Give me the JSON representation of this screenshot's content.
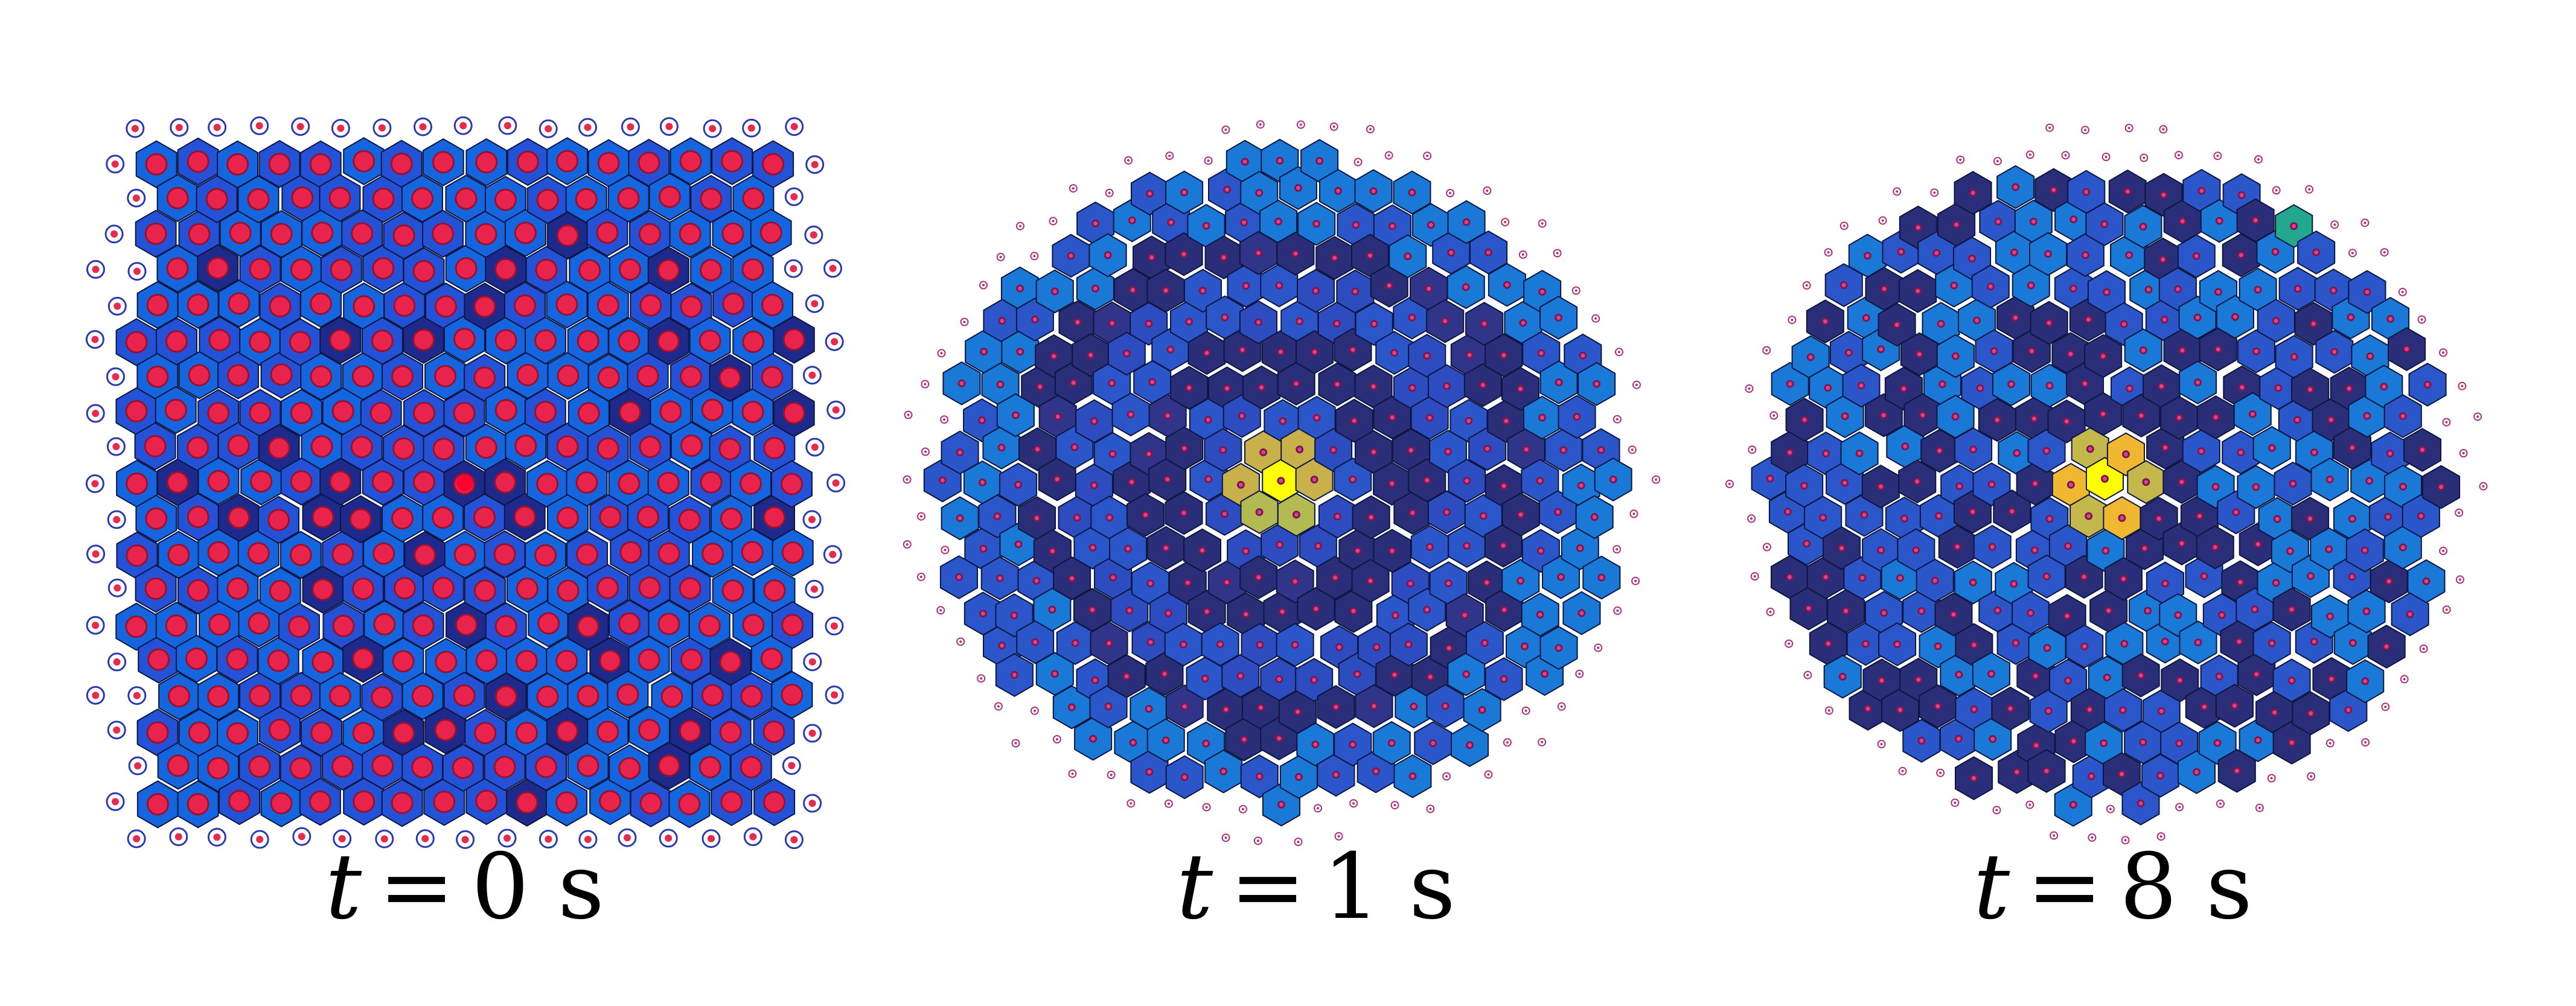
{
  "panels": [
    {
      "caption": {
        "variable": "t",
        "equals": "=",
        "value": "0",
        "unit": "s"
      },
      "time_s": 0,
      "cell_style": "uniform-blue-with-large-red-nucleus",
      "highlighted_center_cell": true,
      "colors": {
        "low": "#1d2a8c",
        "mid": "#2452d6",
        "high": "#1565df"
      }
    },
    {
      "caption": {
        "variable": "t",
        "equals": "=",
        "value": "1",
        "unit": "s"
      },
      "time_s": 1,
      "cell_style": "concentric-rings",
      "colors": {
        "center": "#ffff00",
        "inner_ring": "#c8b04a",
        "dark": "#2a2e78",
        "mid": "#2b56c9",
        "light": "#1a78d6"
      }
    },
    {
      "caption": {
        "variable": "t",
        "equals": "=",
        "value": "8",
        "unit": "s"
      },
      "time_s": 8,
      "cell_style": "diffused-mosaic",
      "colors": {
        "center": "#ffff00",
        "inner_ring": "#f0b830",
        "dark": "#2a2e78",
        "mid": "#2b56c9",
        "light": "#1a78d6",
        "outlier": "#22a88e"
      }
    }
  ]
}
